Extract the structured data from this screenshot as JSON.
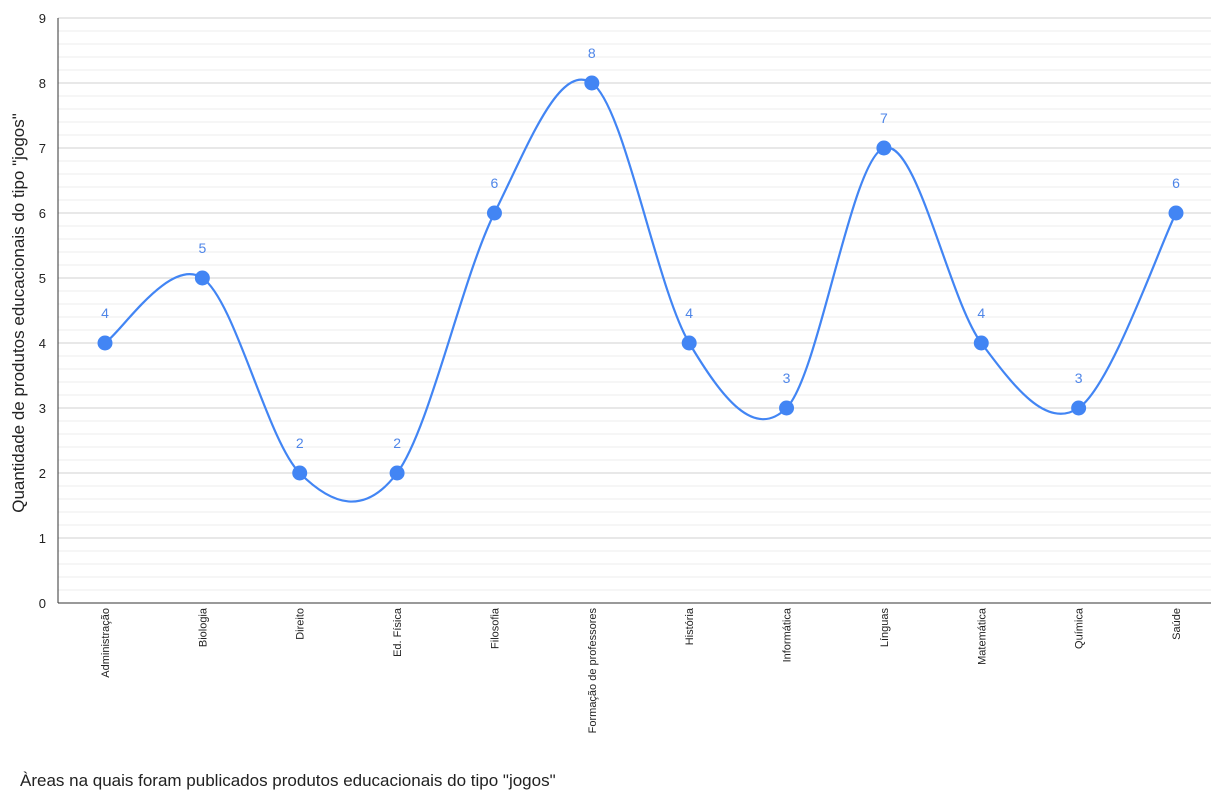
{
  "chart_data": {
    "type": "line",
    "smooth": true,
    "categories": [
      "Administração",
      "Biologia",
      "Direito",
      "Ed. Física",
      "Filosofia",
      "Formação de professores",
      "História",
      "Informática",
      "Línguas",
      "Matemática",
      "Química",
      "Saúde"
    ],
    "series": [
      {
        "values": [
          4,
          5,
          2,
          2,
          6,
          8,
          4,
          3,
          7,
          4,
          3,
          6
        ],
        "color": "#4285f4"
      }
    ],
    "data_labels": true,
    "ylabel": "Quantidade de produtos educacionais do tipo \"jogos\"",
    "xlabel": "Àreas na quais foram publicados produtos educacionais do tipo \"jogos\"",
    "ylim": [
      0,
      9
    ],
    "yticks": [
      0,
      1,
      2,
      3,
      4,
      5,
      6,
      7,
      8,
      9
    ],
    "grid": {
      "major": true,
      "minor": true
    },
    "legend": "none",
    "colors": {
      "line": "#4285f4",
      "label": "#4f86e8",
      "grid_major": "#d0d0d0",
      "grid_minor": "#ececec",
      "axis": "#333333"
    }
  }
}
